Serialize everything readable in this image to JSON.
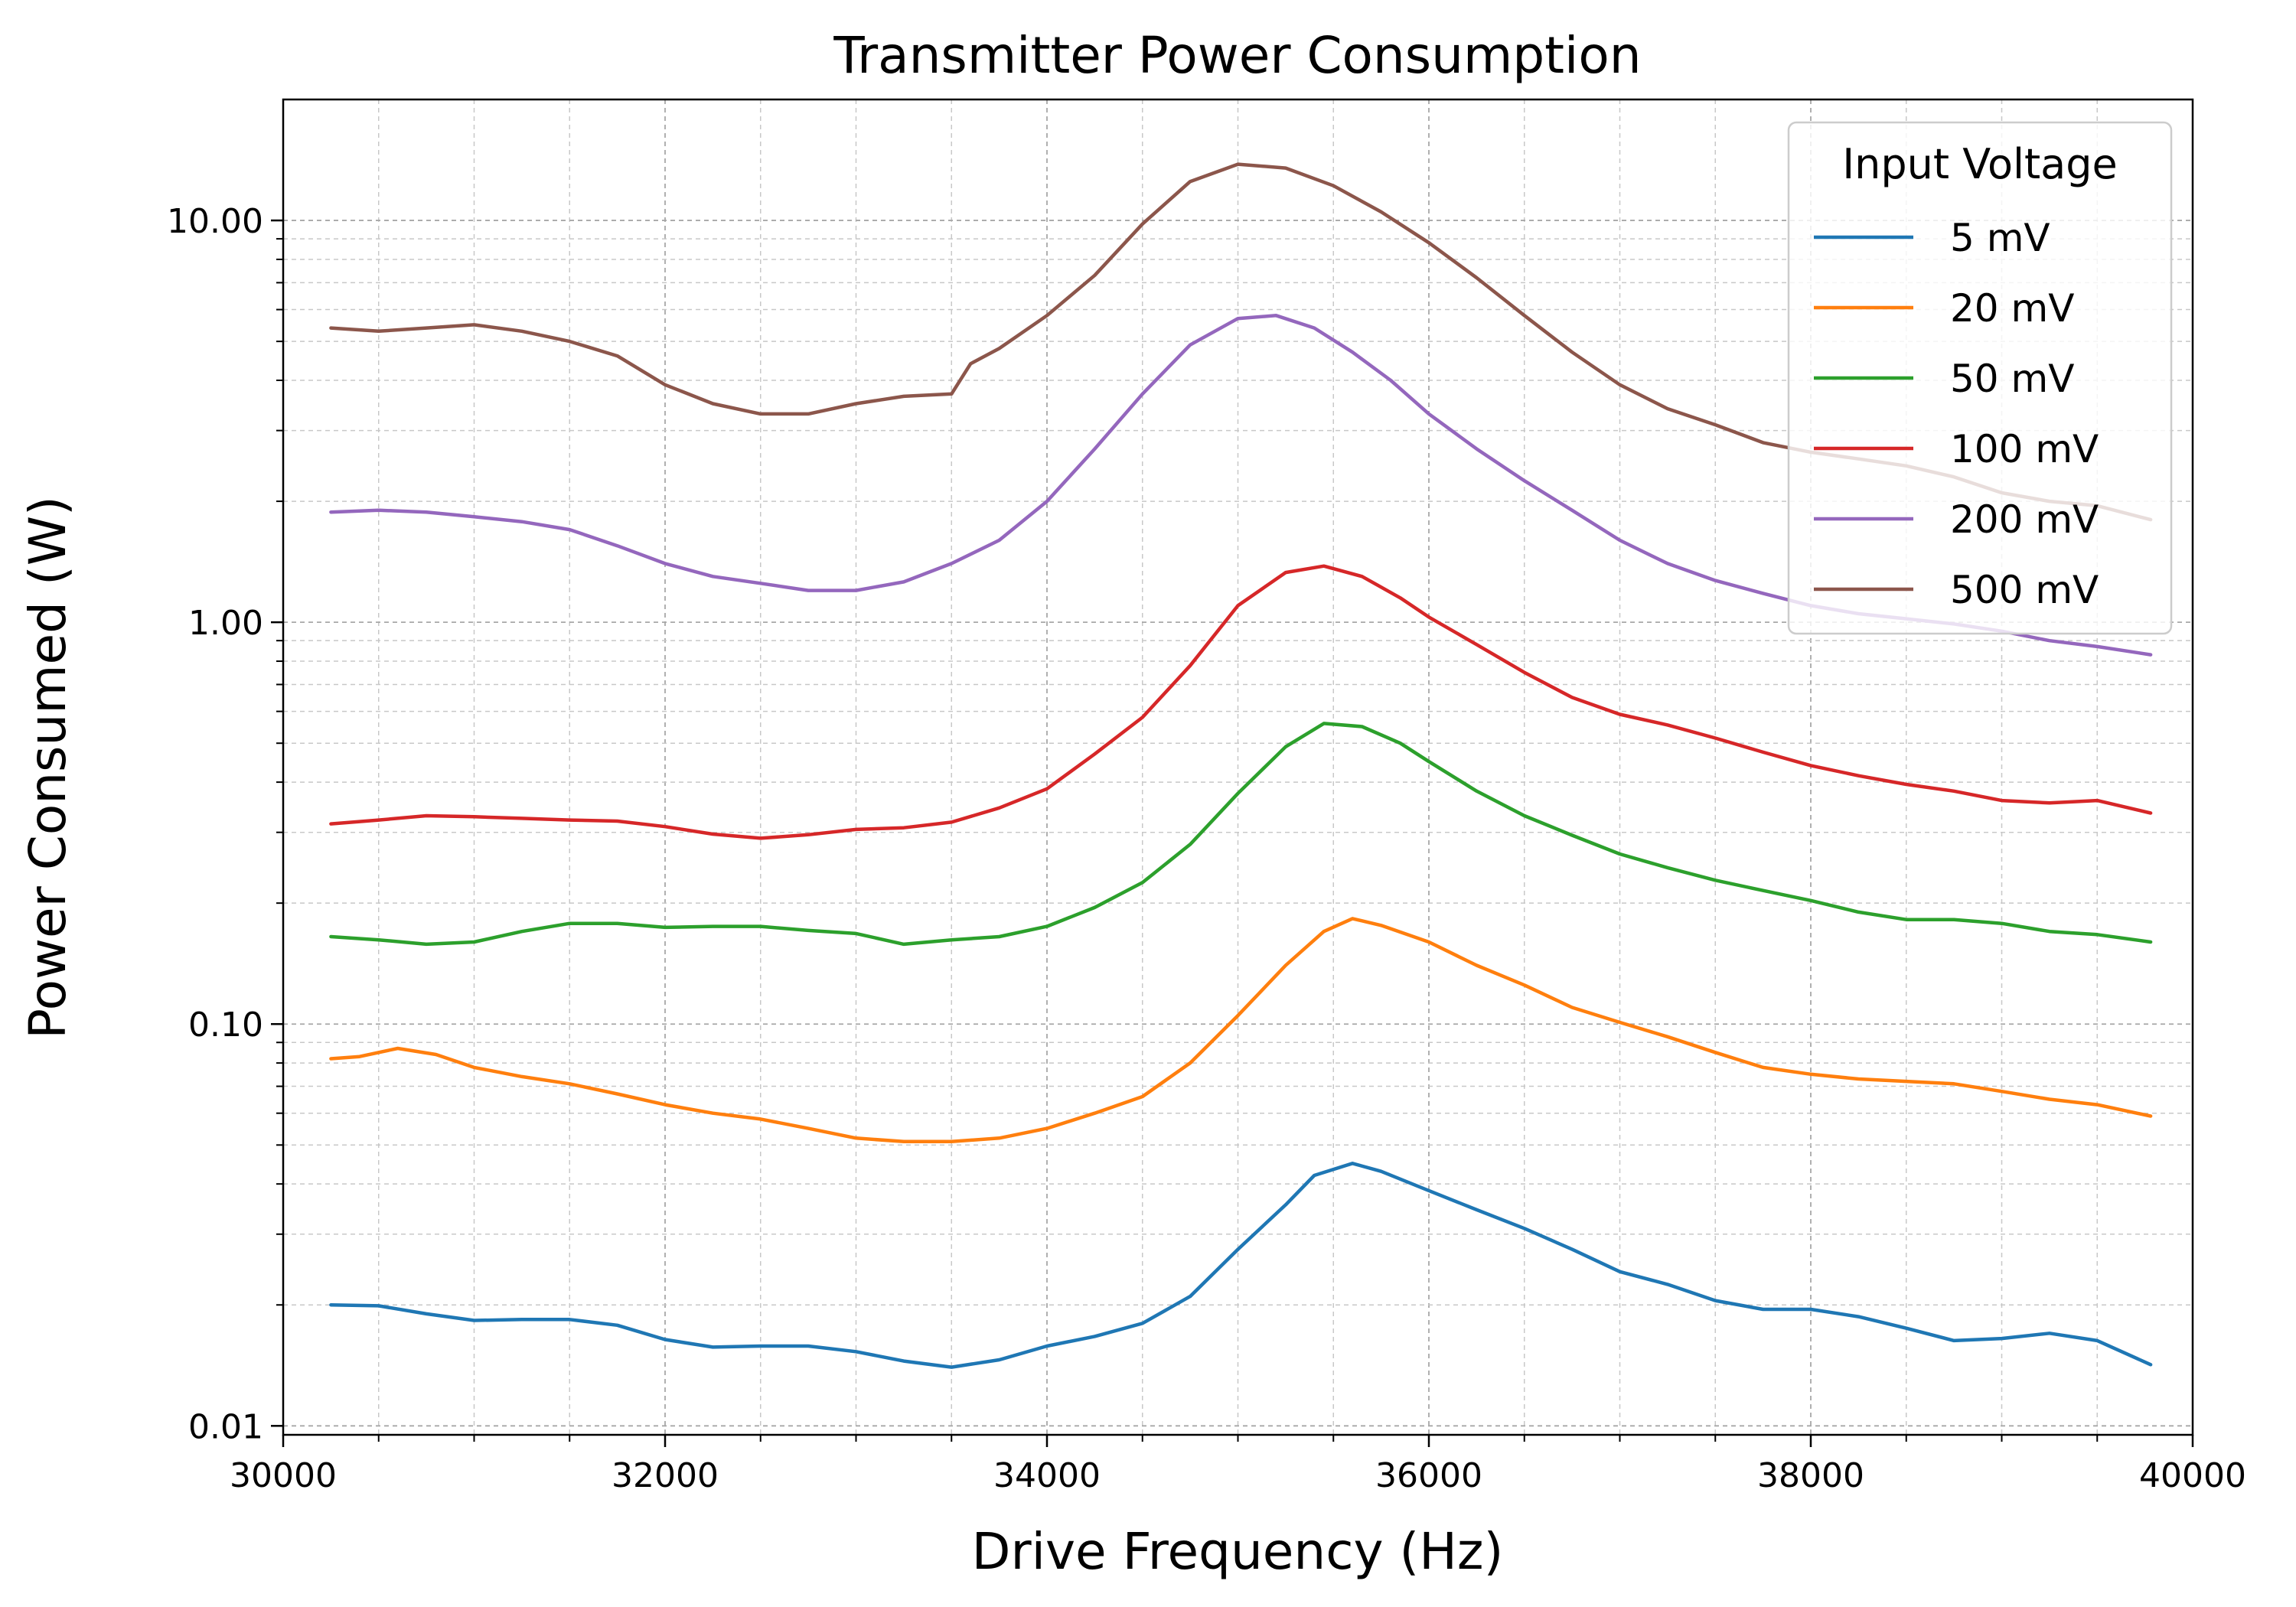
{
  "chart_data": {
    "type": "line",
    "title": "Transmitter Power Consumption",
    "xlabel": "Drive Frequency (Hz)",
    "ylabel": "Power Consumed (W)",
    "xlim": [
      30000,
      40000
    ],
    "ylim": [
      0.0095,
      20
    ],
    "yscale": "log",
    "grid": true,
    "x_ticks": [
      30000,
      32000,
      34000,
      36000,
      38000,
      40000
    ],
    "x_tick_labels": [
      "30000",
      "32000",
      "34000",
      "36000",
      "38000",
      "40000"
    ],
    "y_ticks": [
      0.01,
      0.1,
      1,
      10
    ],
    "y_tick_labels": [
      "0.01",
      "0.10",
      "1.00",
      "10.00"
    ],
    "legend": {
      "title": "Input Voltage",
      "position": "top-right"
    },
    "series": [
      {
        "name": "5 mV",
        "color": "#1f77b4",
        "points": [
          [
            30250,
            0.02
          ],
          [
            30500,
            0.0199
          ],
          [
            30750,
            0.019
          ],
          [
            31000,
            0.0183
          ],
          [
            31250,
            0.0184
          ],
          [
            31500,
            0.0184
          ],
          [
            31750,
            0.0178
          ],
          [
            32000,
            0.0164
          ],
          [
            32250,
            0.0157
          ],
          [
            32500,
            0.0158
          ],
          [
            32750,
            0.0158
          ],
          [
            33000,
            0.0153
          ],
          [
            33250,
            0.0145
          ],
          [
            33500,
            0.014
          ],
          [
            33750,
            0.0146
          ],
          [
            34000,
            0.0158
          ],
          [
            34250,
            0.0167
          ],
          [
            34500,
            0.018
          ],
          [
            34750,
            0.021
          ],
          [
            35000,
            0.0275
          ],
          [
            35250,
            0.0355
          ],
          [
            35400,
            0.042
          ],
          [
            35600,
            0.045
          ],
          [
            35750,
            0.043
          ],
          [
            36000,
            0.0385
          ],
          [
            36250,
            0.0345
          ],
          [
            36500,
            0.031
          ],
          [
            36750,
            0.0275
          ],
          [
            37000,
            0.0242
          ],
          [
            37250,
            0.0225
          ],
          [
            37500,
            0.0205
          ],
          [
            37750,
            0.0195
          ],
          [
            38000,
            0.0195
          ],
          [
            38250,
            0.0187
          ],
          [
            38500,
            0.0175
          ],
          [
            38750,
            0.0163
          ],
          [
            39000,
            0.0165
          ],
          [
            39250,
            0.017
          ],
          [
            39500,
            0.0163
          ],
          [
            39780,
            0.0142
          ]
        ]
      },
      {
        "name": "20 mV",
        "color": "#ff7f0e",
        "points": [
          [
            30250,
            0.082
          ],
          [
            30400,
            0.083
          ],
          [
            30600,
            0.087
          ],
          [
            30800,
            0.084
          ],
          [
            31000,
            0.078
          ],
          [
            31250,
            0.074
          ],
          [
            31500,
            0.071
          ],
          [
            31750,
            0.067
          ],
          [
            32000,
            0.063
          ],
          [
            32250,
            0.06
          ],
          [
            32500,
            0.058
          ],
          [
            32750,
            0.055
          ],
          [
            33000,
            0.052
          ],
          [
            33250,
            0.051
          ],
          [
            33500,
            0.051
          ],
          [
            33750,
            0.052
          ],
          [
            34000,
            0.055
          ],
          [
            34250,
            0.06
          ],
          [
            34500,
            0.066
          ],
          [
            34750,
            0.08
          ],
          [
            35000,
            0.105
          ],
          [
            35250,
            0.14
          ],
          [
            35450,
            0.17
          ],
          [
            35600,
            0.183
          ],
          [
            35750,
            0.176
          ],
          [
            36000,
            0.16
          ],
          [
            36250,
            0.14
          ],
          [
            36500,
            0.125
          ],
          [
            36750,
            0.11
          ],
          [
            37000,
            0.101
          ],
          [
            37250,
            0.093
          ],
          [
            37500,
            0.085
          ],
          [
            37750,
            0.078
          ],
          [
            38000,
            0.075
          ],
          [
            38250,
            0.073
          ],
          [
            38500,
            0.072
          ],
          [
            38750,
            0.071
          ],
          [
            39000,
            0.068
          ],
          [
            39250,
            0.065
          ],
          [
            39500,
            0.063
          ],
          [
            39780,
            0.059
          ]
        ]
      },
      {
        "name": "50 mV",
        "color": "#2ca02c",
        "points": [
          [
            30250,
            0.165
          ],
          [
            30500,
            0.162
          ],
          [
            30750,
            0.158
          ],
          [
            31000,
            0.16
          ],
          [
            31250,
            0.17
          ],
          [
            31500,
            0.178
          ],
          [
            31750,
            0.178
          ],
          [
            32000,
            0.174
          ],
          [
            32250,
            0.175
          ],
          [
            32500,
            0.175
          ],
          [
            32750,
            0.171
          ],
          [
            33000,
            0.168
          ],
          [
            33250,
            0.158
          ],
          [
            33500,
            0.162
          ],
          [
            33750,
            0.165
          ],
          [
            34000,
            0.175
          ],
          [
            34250,
            0.195
          ],
          [
            34500,
            0.225
          ],
          [
            34750,
            0.28
          ],
          [
            35000,
            0.375
          ],
          [
            35250,
            0.49
          ],
          [
            35450,
            0.56
          ],
          [
            35650,
            0.55
          ],
          [
            35850,
            0.5
          ],
          [
            36000,
            0.45
          ],
          [
            36250,
            0.38
          ],
          [
            36500,
            0.33
          ],
          [
            36750,
            0.295
          ],
          [
            37000,
            0.265
          ],
          [
            37250,
            0.245
          ],
          [
            37500,
            0.228
          ],
          [
            37750,
            0.215
          ],
          [
            38000,
            0.203
          ],
          [
            38250,
            0.19
          ],
          [
            38500,
            0.182
          ],
          [
            38750,
            0.182
          ],
          [
            39000,
            0.178
          ],
          [
            39250,
            0.17
          ],
          [
            39500,
            0.167
          ],
          [
            39780,
            0.16
          ]
        ]
      },
      {
        "name": "100 mV",
        "color": "#d62728",
        "points": [
          [
            30250,
            0.315
          ],
          [
            30500,
            0.322
          ],
          [
            30750,
            0.33
          ],
          [
            31000,
            0.328
          ],
          [
            31250,
            0.325
          ],
          [
            31500,
            0.322
          ],
          [
            31750,
            0.32
          ],
          [
            32000,
            0.31
          ],
          [
            32250,
            0.297
          ],
          [
            32500,
            0.29
          ],
          [
            32750,
            0.296
          ],
          [
            33000,
            0.305
          ],
          [
            33250,
            0.308
          ],
          [
            33500,
            0.318
          ],
          [
            33750,
            0.345
          ],
          [
            34000,
            0.385
          ],
          [
            34250,
            0.47
          ],
          [
            34500,
            0.58
          ],
          [
            34750,
            0.78
          ],
          [
            35000,
            1.1
          ],
          [
            35250,
            1.33
          ],
          [
            35450,
            1.38
          ],
          [
            35650,
            1.3
          ],
          [
            35850,
            1.15
          ],
          [
            36000,
            1.03
          ],
          [
            36250,
            0.88
          ],
          [
            36500,
            0.75
          ],
          [
            36750,
            0.65
          ],
          [
            37000,
            0.59
          ],
          [
            37250,
            0.555
          ],
          [
            37500,
            0.515
          ],
          [
            37750,
            0.475
          ],
          [
            38000,
            0.44
          ],
          [
            38250,
            0.415
          ],
          [
            38500,
            0.395
          ],
          [
            38750,
            0.38
          ],
          [
            39000,
            0.36
          ],
          [
            39250,
            0.355
          ],
          [
            39500,
            0.36
          ],
          [
            39780,
            0.335
          ]
        ]
      },
      {
        "name": "200 mV",
        "color": "#9467bd",
        "points": [
          [
            30250,
            1.88
          ],
          [
            30500,
            1.9
          ],
          [
            30750,
            1.88
          ],
          [
            31000,
            1.83
          ],
          [
            31250,
            1.78
          ],
          [
            31500,
            1.7
          ],
          [
            31750,
            1.55
          ],
          [
            32000,
            1.4
          ],
          [
            32250,
            1.3
          ],
          [
            32500,
            1.25
          ],
          [
            32750,
            1.2
          ],
          [
            33000,
            1.2
          ],
          [
            33250,
            1.26
          ],
          [
            33500,
            1.4
          ],
          [
            33750,
            1.6
          ],
          [
            34000,
            2.0
          ],
          [
            34250,
            2.7
          ],
          [
            34500,
            3.7
          ],
          [
            34750,
            4.9
          ],
          [
            35000,
            5.7
          ],
          [
            35200,
            5.8
          ],
          [
            35400,
            5.4
          ],
          [
            35600,
            4.7
          ],
          [
            35800,
            4.0
          ],
          [
            36000,
            3.3
          ],
          [
            36250,
            2.7
          ],
          [
            36500,
            2.25
          ],
          [
            36750,
            1.9
          ],
          [
            37000,
            1.6
          ],
          [
            37250,
            1.4
          ],
          [
            37500,
            1.27
          ],
          [
            37750,
            1.18
          ],
          [
            38000,
            1.1
          ],
          [
            38250,
            1.05
          ],
          [
            38500,
            1.02
          ],
          [
            38750,
            0.99
          ],
          [
            39000,
            0.95
          ],
          [
            39250,
            0.9
          ],
          [
            39500,
            0.87
          ],
          [
            39780,
            0.83
          ]
        ]
      },
      {
        "name": "500 mV",
        "color": "#8c564b",
        "points": [
          [
            30250,
            5.4
          ],
          [
            30500,
            5.3
          ],
          [
            30750,
            5.4
          ],
          [
            31000,
            5.5
          ],
          [
            31250,
            5.3
          ],
          [
            31500,
            5.0
          ],
          [
            31750,
            4.6
          ],
          [
            32000,
            3.9
          ],
          [
            32250,
            3.5
          ],
          [
            32500,
            3.3
          ],
          [
            32750,
            3.3
          ],
          [
            33000,
            3.5
          ],
          [
            33250,
            3.65
          ],
          [
            33500,
            3.7
          ],
          [
            33600,
            4.4
          ],
          [
            33750,
            4.8
          ],
          [
            34000,
            5.8
          ],
          [
            34250,
            7.3
          ],
          [
            34500,
            9.8
          ],
          [
            34750,
            12.5
          ],
          [
            35000,
            13.8
          ],
          [
            35250,
            13.5
          ],
          [
            35500,
            12.2
          ],
          [
            35750,
            10.5
          ],
          [
            36000,
            8.8
          ],
          [
            36250,
            7.2
          ],
          [
            36500,
            5.8
          ],
          [
            36750,
            4.7
          ],
          [
            37000,
            3.9
          ],
          [
            37250,
            3.4
          ],
          [
            37500,
            3.1
          ],
          [
            37750,
            2.8
          ],
          [
            38000,
            2.65
          ],
          [
            38250,
            2.55
          ],
          [
            38500,
            2.45
          ],
          [
            38750,
            2.3
          ],
          [
            39000,
            2.1
          ],
          [
            39250,
            2.0
          ],
          [
            39500,
            1.95
          ],
          [
            39780,
            1.8
          ]
        ]
      }
    ]
  }
}
